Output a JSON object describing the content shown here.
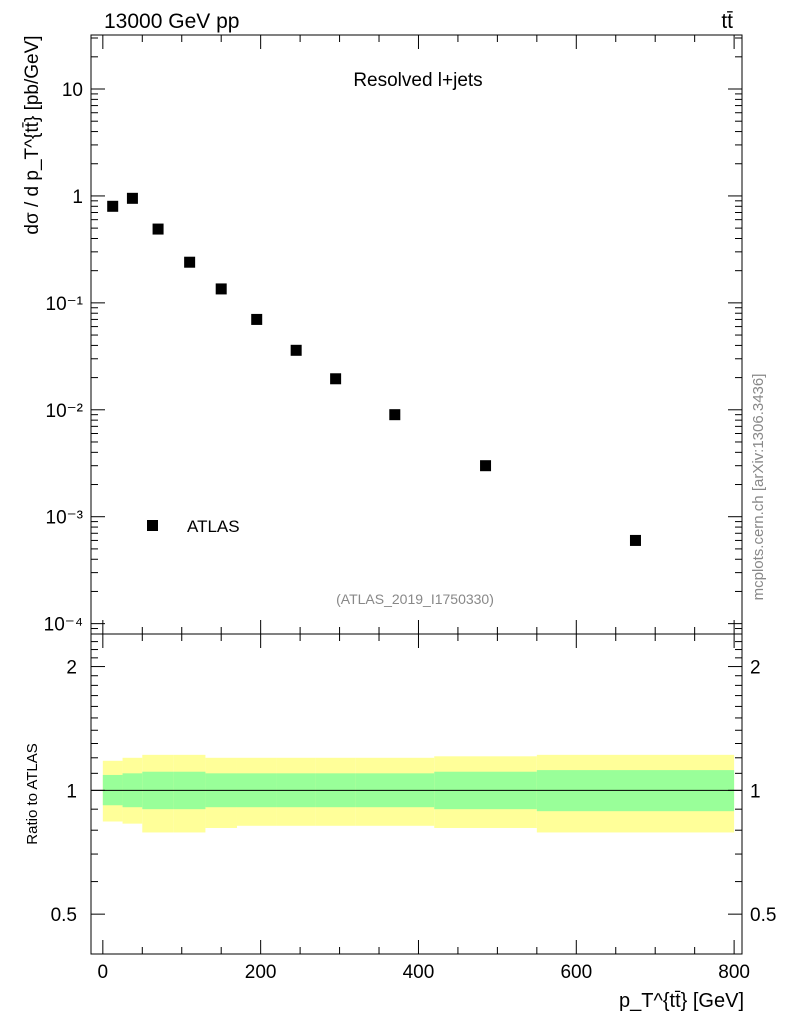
{
  "header": {
    "energy_label": "13000 GeV pp",
    "process_label": "tt̄"
  },
  "watermark": "mcplots.cern.ch [arXiv:1306.3436]",
  "analysis_id": "(ATLAS_2019_I1750330)",
  "colors": {
    "band_inner": "#99ff99",
    "band_outer": "#ffff99",
    "marker": "#000000"
  },
  "chart_data": [
    {
      "type": "scatter",
      "title": "Resolved l+jets",
      "ylabel": "dσ / d p_T^{tt̄} [pb/GeV]",
      "xlim": [
        -15,
        810
      ],
      "ylim": [
        8e-05,
        32
      ],
      "yscale": "log",
      "ytick_labels": [
        "10",
        "1",
        "10⁻¹",
        "10⁻²",
        "10⁻³",
        "10⁻⁴"
      ],
      "legend_location": "lower-left",
      "series": [
        {
          "name": "ATLAS",
          "x": [
            12.5,
            37.5,
            70,
            110,
            150,
            195,
            245,
            295,
            370,
            485,
            675
          ],
          "y": [
            0.8,
            0.95,
            0.49,
            0.24,
            0.135,
            0.07,
            0.036,
            0.0195,
            0.009,
            0.003,
            0.0006
          ]
        }
      ]
    },
    {
      "type": "area",
      "ylabel": "Ratio to ATLAS",
      "xlabel": "p_T^{tt̄} [GeV]",
      "xlim": [
        -15,
        810
      ],
      "ylim": [
        0.4,
        2.4
      ],
      "yscale": "log",
      "x_ticks": [
        "0",
        "200",
        "400",
        "600",
        "800"
      ],
      "y_ticks": [
        "0.5",
        "1",
        "2"
      ],
      "reference_line": 1,
      "bins": [
        {
          "x0": 0,
          "x1": 25,
          "inner": [
            0.92,
            1.09
          ],
          "outer": [
            0.84,
            1.18
          ]
        },
        {
          "x0": 25,
          "x1": 50,
          "inner": [
            0.91,
            1.1
          ],
          "outer": [
            0.83,
            1.2
          ]
        },
        {
          "x0": 50,
          "x1": 90,
          "inner": [
            0.9,
            1.11
          ],
          "outer": [
            0.79,
            1.22
          ]
        },
        {
          "x0": 90,
          "x1": 130,
          "inner": [
            0.9,
            1.11
          ],
          "outer": [
            0.79,
            1.22
          ]
        },
        {
          "x0": 130,
          "x1": 170,
          "inner": [
            0.91,
            1.1
          ],
          "outer": [
            0.81,
            1.2
          ]
        },
        {
          "x0": 170,
          "x1": 220,
          "inner": [
            0.91,
            1.1
          ],
          "outer": [
            0.82,
            1.2
          ]
        },
        {
          "x0": 220,
          "x1": 270,
          "inner": [
            0.91,
            1.1
          ],
          "outer": [
            0.82,
            1.2
          ]
        },
        {
          "x0": 270,
          "x1": 320,
          "inner": [
            0.91,
            1.1
          ],
          "outer": [
            0.82,
            1.2
          ]
        },
        {
          "x0": 320,
          "x1": 420,
          "inner": [
            0.91,
            1.1
          ],
          "outer": [
            0.82,
            1.2
          ]
        },
        {
          "x0": 420,
          "x1": 550,
          "inner": [
            0.9,
            1.11
          ],
          "outer": [
            0.81,
            1.21
          ]
        },
        {
          "x0": 550,
          "x1": 800,
          "inner": [
            0.89,
            1.12
          ],
          "outer": [
            0.79,
            1.22
          ]
        }
      ]
    }
  ]
}
